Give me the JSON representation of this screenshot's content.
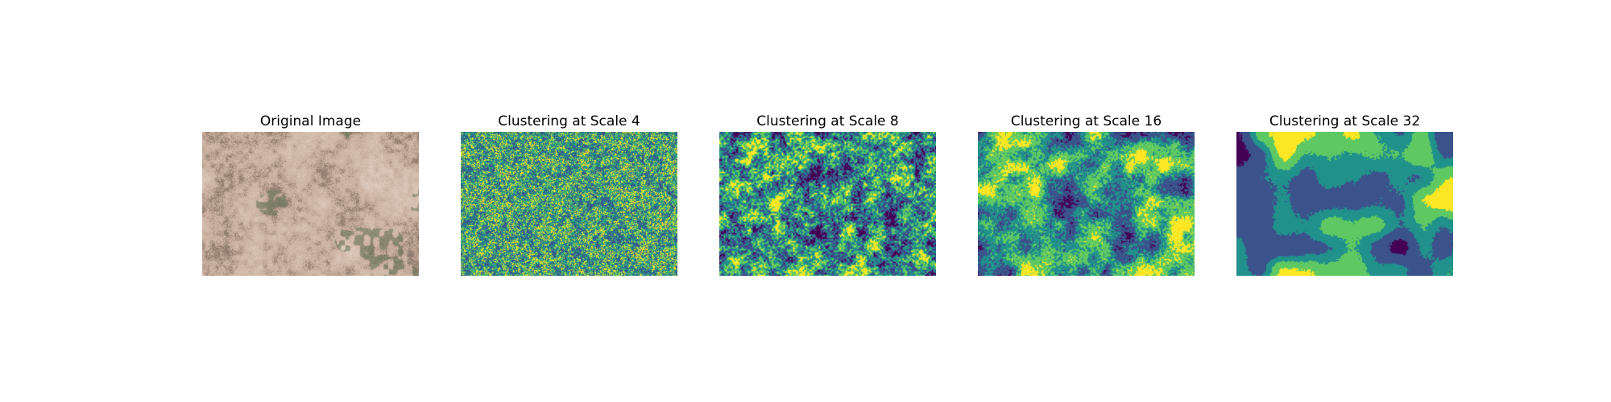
{
  "panels": [
    {
      "title": "Original Image",
      "kind": "photo",
      "seed": 11
    },
    {
      "title": "Clustering at Scale 4",
      "kind": "cluster",
      "scale": 4,
      "seed": 21
    },
    {
      "title": "Clustering at Scale 8",
      "kind": "cluster",
      "scale": 8,
      "seed": 31
    },
    {
      "title": "Clustering at Scale 16",
      "kind": "cluster",
      "scale": 16,
      "seed": 41
    },
    {
      "title": "Clustering at Scale 32",
      "kind": "cluster",
      "scale": 32,
      "seed": 51
    }
  ],
  "palette": {
    "cluster_colors": [
      "#440154",
      "#3b528b",
      "#21918c",
      "#5ec962",
      "#fde725"
    ],
    "photo_base": "#c9ad9b",
    "photo_shadow": "#8f7c6e",
    "photo_highlight": "#e6d7cc",
    "photo_green": "#67765a"
  }
}
